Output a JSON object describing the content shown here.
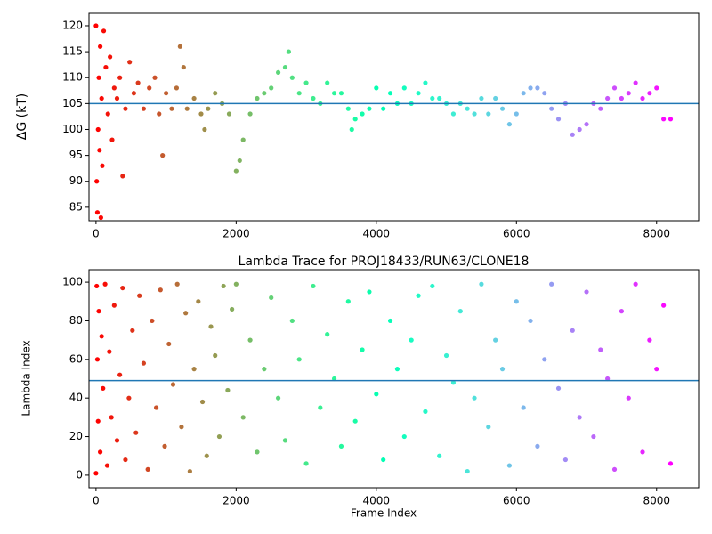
{
  "chart_data": [
    {
      "type": "scatter",
      "ylabel": "ΔG (kT)",
      "colormap": "rainbow_r",
      "hline": 105,
      "hline_color": "#1f77b4",
      "xlim": [
        -100,
        8600
      ],
      "xticks": [
        0,
        2000,
        4000,
        6000,
        8000
      ],
      "ylim": [
        82.4,
        122.4
      ],
      "yticks": [
        85,
        90,
        95,
        100,
        105,
        110,
        115,
        120
      ],
      "x": [
        0,
        10,
        20,
        30,
        40,
        50,
        60,
        70,
        80,
        90,
        110,
        140,
        170,
        200,
        230,
        260,
        300,
        340,
        380,
        420,
        480,
        540,
        600,
        680,
        760,
        840,
        900,
        950,
        1000,
        1080,
        1150,
        1200,
        1250,
        1300,
        1400,
        1500,
        1550,
        1600,
        1700,
        1800,
        1900,
        2000,
        2050,
        2100,
        2200,
        2300,
        2400,
        2500,
        2600,
        2700,
        2750,
        2800,
        2900,
        3000,
        3100,
        3200,
        3300,
        3400,
        3500,
        3600,
        3650,
        3700,
        3800,
        3900,
        4000,
        4100,
        4200,
        4300,
        4400,
        4500,
        4600,
        4700,
        4800,
        4900,
        5000,
        5100,
        5200,
        5300,
        5400,
        5500,
        5600,
        5700,
        5800,
        5900,
        6000,
        6100,
        6200,
        6300,
        6400,
        6500,
        6600,
        6700,
        6800,
        6900,
        7000,
        7100,
        7200,
        7300,
        7400,
        7500,
        7600,
        7700,
        7800,
        7900,
        8000,
        8100,
        8200
      ],
      "y": [
        120,
        90,
        84,
        100,
        110,
        96,
        116,
        83,
        106,
        93,
        119,
        112,
        103,
        114,
        98,
        108,
        106,
        110,
        91,
        104,
        113,
        107,
        109,
        104,
        108,
        110,
        103,
        95,
        107,
        104,
        108,
        116,
        112,
        104,
        106,
        103,
        100,
        104,
        107,
        105,
        103,
        92,
        94,
        98,
        103,
        106,
        107,
        108,
        111,
        112,
        115,
        110,
        107,
        109,
        106,
        105,
        109,
        107,
        107,
        104,
        100,
        102,
        103,
        104,
        108,
        104,
        107,
        105,
        108,
        105,
        107,
        109,
        106,
        106,
        105,
        103,
        105,
        104,
        103,
        106,
        103,
        106,
        104,
        101,
        103,
        107,
        108,
        108,
        107,
        104,
        102,
        105,
        99,
        100,
        101,
        105,
        104,
        106,
        108,
        106,
        107,
        109,
        106,
        107,
        108,
        102,
        102
      ]
    },
    {
      "type": "scatter",
      "title": "Lambda Trace for PROJ18433/RUN63/CLONE18",
      "xlabel": "Frame Index",
      "ylabel": "Lambda Index",
      "colormap": "rainbow_r",
      "hline": 49,
      "hline_color": "#1f77b4",
      "xlim": [
        -100,
        8600
      ],
      "xticks": [
        0,
        2000,
        4000,
        6000,
        8000
      ],
      "ylim": [
        -6.5,
        106.5
      ],
      "yticks": [
        0,
        20,
        40,
        60,
        80,
        100
      ],
      "x": [
        0,
        10,
        20,
        30,
        40,
        60,
        80,
        100,
        130,
        160,
        190,
        220,
        260,
        300,
        340,
        380,
        420,
        470,
        520,
        570,
        620,
        680,
        740,
        800,
        860,
        920,
        980,
        1040,
        1100,
        1160,
        1220,
        1280,
        1340,
        1400,
        1460,
        1520,
        1580,
        1640,
        1700,
        1760,
        1820,
        1880,
        1940,
        2000,
        2100,
        2200,
        2300,
        2400,
        2500,
        2600,
        2700,
        2800,
        2900,
        3000,
        3100,
        3200,
        3300,
        3400,
        3500,
        3600,
        3700,
        3800,
        3900,
        4000,
        4100,
        4200,
        4300,
        4400,
        4500,
        4600,
        4700,
        4800,
        4900,
        5000,
        5100,
        5200,
        5300,
        5400,
        5500,
        5600,
        5700,
        5800,
        5900,
        6000,
        6100,
        6200,
        6300,
        6400,
        6500,
        6600,
        6700,
        6800,
        6900,
        7000,
        7100,
        7200,
        7300,
        7400,
        7500,
        7600,
        7700,
        7800,
        7900,
        8000,
        8100,
        8200
      ],
      "y": [
        1,
        98,
        60,
        28,
        85,
        12,
        72,
        45,
        99,
        5,
        64,
        30,
        88,
        18,
        52,
        97,
        8,
        40,
        75,
        22,
        93,
        58,
        3,
        80,
        35,
        96,
        15,
        68,
        47,
        99,
        25,
        84,
        2,
        55,
        90,
        38,
        10,
        77,
        62,
        20,
        98,
        44,
        86,
        99,
        30,
        70,
        12,
        55,
        92,
        40,
        18,
        80,
        60,
        6,
        98,
        35,
        73,
        50,
        15,
        90,
        28,
        65,
        95,
        42,
        8,
        80,
        55,
        20,
        70,
        93,
        33,
        98,
        10,
        62,
        48,
        85,
        2,
        40,
        99,
        25,
        70,
        55,
        5,
        90,
        35,
        80,
        15,
        60,
        99,
        45,
        8,
        75,
        30,
        95,
        20,
        65,
        50,
        3,
        85,
        40,
        99,
        12,
        70,
        55,
        88,
        6
      ]
    }
  ]
}
